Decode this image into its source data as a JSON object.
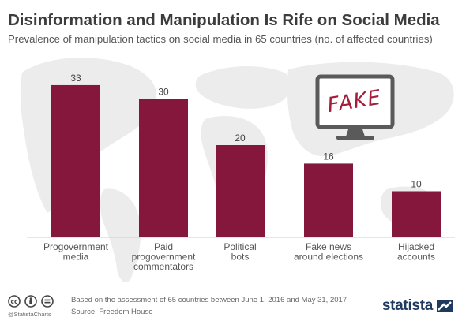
{
  "title": "Disinformation and Manipulation Is Rife on Social Media",
  "subtitle": "Prevalence of manipulation tactics on social media in 65 countries (no. of affected countries)",
  "illustration": {
    "screen_text": "FAKE"
  },
  "chart_data": {
    "type": "bar",
    "categories": [
      [
        "Progovernment",
        "media"
      ],
      [
        "Paid",
        "progovernment",
        "commentators"
      ],
      [
        "Political",
        "bots"
      ],
      [
        "Fake news",
        "around elections"
      ],
      [
        "Hijacked",
        "accounts"
      ]
    ],
    "values": [
      33,
      30,
      20,
      16,
      10
    ],
    "ylim": [
      0,
      35
    ],
    "grid": false,
    "bar_color": "#85173d",
    "data_labels": true
  },
  "footer": {
    "handle": "@StatistaCharts",
    "note": "Based on the assessment of 65 countries between June 1, 2016 and May 31, 2017",
    "source": "Source: Freedom House",
    "license_icons": [
      "cc-icon",
      "by-icon",
      "nd-icon"
    ],
    "brand": "statista"
  },
  "colors": {
    "bar": "#85173d",
    "title": "#3c3c3c",
    "brand": "#1f3a5f"
  }
}
